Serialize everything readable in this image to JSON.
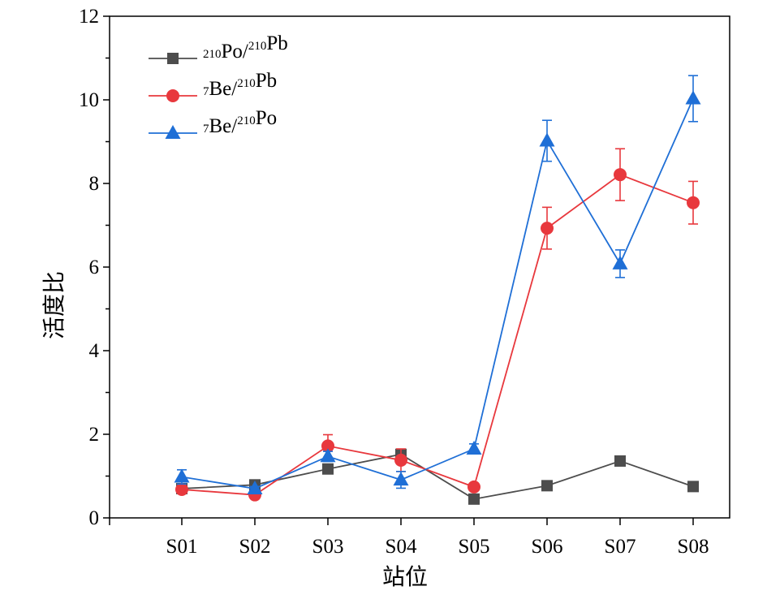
{
  "chart_data": {
    "type": "line",
    "xlabel": "站位",
    "ylabel": "活度比",
    "categories": [
      "S01",
      "S02",
      "S03",
      "S04",
      "S05",
      "S06",
      "S07",
      "S08"
    ],
    "ylim": [
      0,
      12
    ],
    "yticks": [
      0,
      2,
      4,
      6,
      8,
      10,
      12
    ],
    "legend_position": "top-left",
    "grid": false,
    "series": [
      {
        "name": "210Po/210Pb",
        "name_parts": [
          {
            "text": "210",
            "sup": true
          },
          {
            "text": "Po/",
            "sup": false
          },
          {
            "text": "210",
            "sup": true
          },
          {
            "text": "Pb",
            "sup": false
          }
        ],
        "color": "#4d4d4d",
        "marker": "square",
        "values": [
          0.7,
          0.79,
          1.17,
          1.52,
          0.45,
          0.77,
          1.36,
          0.75
        ],
        "errors": [
          0.03,
          0.03,
          0.04,
          0.05,
          0.02,
          0.03,
          0.05,
          0.03
        ]
      },
      {
        "name": "7Be/210Pb",
        "name_parts": [
          {
            "text": "7",
            "sup": true
          },
          {
            "text": "Be/",
            "sup": false
          },
          {
            "text": "210",
            "sup": true
          },
          {
            "text": "Pb",
            "sup": false
          }
        ],
        "color": "#e8383d",
        "marker": "circle",
        "values": [
          0.68,
          0.55,
          1.72,
          1.38,
          0.74,
          6.93,
          8.21,
          7.54
        ],
        "errors": [
          0.06,
          0.07,
          0.27,
          0.27,
          0.06,
          0.5,
          0.62,
          0.51
        ]
      },
      {
        "name": "7Be/210Po",
        "name_parts": [
          {
            "text": "7",
            "sup": true
          },
          {
            "text": "Be/",
            "sup": false
          },
          {
            "text": "210",
            "sup": true
          },
          {
            "text": "Po",
            "sup": false
          }
        ],
        "color": "#1f6fd6",
        "marker": "triangle",
        "values": [
          0.98,
          0.7,
          1.47,
          0.91,
          1.65,
          9.02,
          6.08,
          10.03
        ],
        "errors": [
          0.17,
          0.05,
          0.12,
          0.2,
          0.12,
          0.49,
          0.33,
          0.55
        ]
      }
    ]
  }
}
